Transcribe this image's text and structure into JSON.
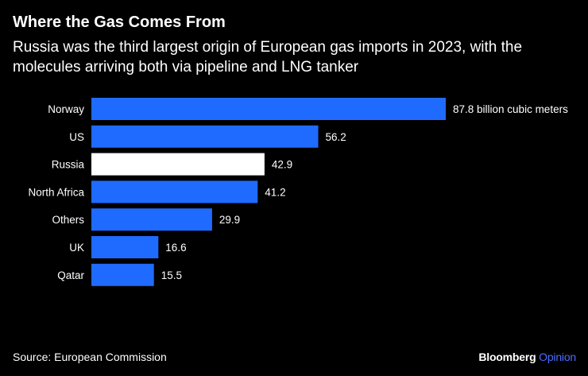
{
  "header": {
    "title": "Where the Gas Comes From",
    "subtitle": "Russia was the third largest origin of European gas imports in 2023, with the molecules arriving both via pipeline and LNG tanker"
  },
  "colors": {
    "background": "#000000",
    "bar_default": "#1f6bff",
    "bar_highlight": "#ffffff",
    "text": "#ffffff",
    "brand_accent": "#4c6dff"
  },
  "chart_data": {
    "type": "bar",
    "orientation": "horizontal",
    "title": "Where the Gas Comes From",
    "subtitle": "Russia was the third largest origin of European gas imports in 2023, with the molecules arriving both via pipeline and LNG tanker",
    "categories": [
      "Norway",
      "US",
      "Russia",
      "North Africa",
      "Others",
      "UK",
      "Qatar"
    ],
    "values": [
      87.8,
      56.2,
      42.9,
      41.2,
      29.9,
      16.6,
      15.5
    ],
    "value_labels": [
      "87.8 billion cubic meters",
      "56.2",
      "42.9",
      "41.2",
      "29.9",
      "16.6",
      "15.5"
    ],
    "highlight": "Russia",
    "unit": "billion cubic meters",
    "xlim": [
      0,
      87.8
    ],
    "xlabel": "",
    "ylabel": "",
    "grid": false
  },
  "footer": {
    "source": "Source: European Commission",
    "brand_main": "Bloomberg",
    "brand_accent": "Opinion"
  }
}
